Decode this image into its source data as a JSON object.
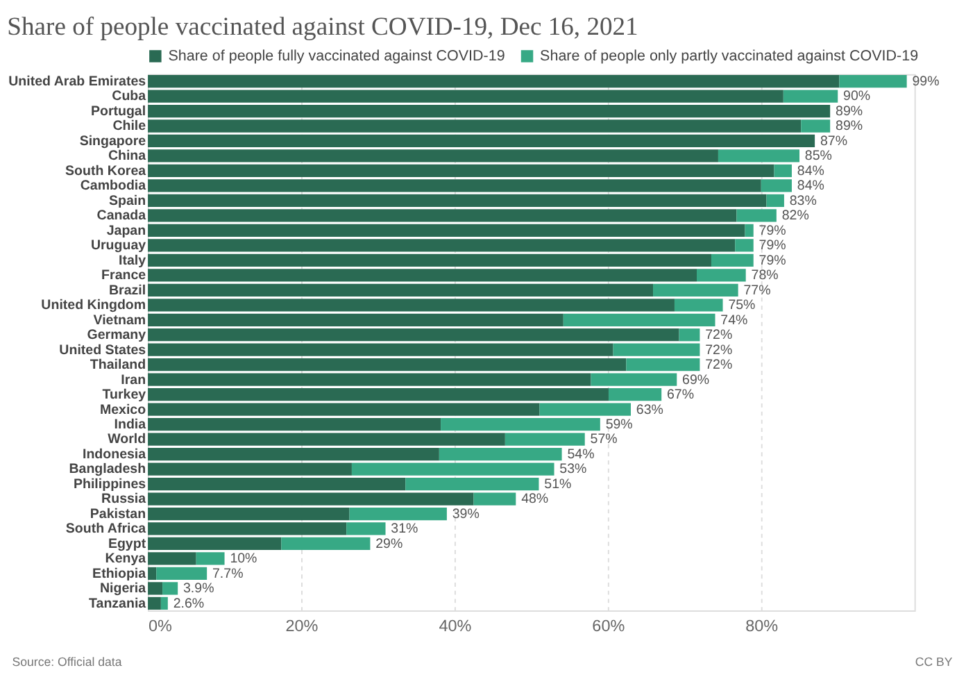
{
  "chart_data": {
    "type": "bar",
    "orientation": "horizontal",
    "stacked": true,
    "title": "Share of people vaccinated against COVID-19, Dec 16, 2021",
    "categories": [
      "United Arab Emirates",
      "Cuba",
      "Portugal",
      "Chile",
      "Singapore",
      "China",
      "South Korea",
      "Cambodia",
      "Spain",
      "Canada",
      "Japan",
      "Uruguay",
      "Italy",
      "France",
      "Brazil",
      "United Kingdom",
      "Vietnam",
      "Germany",
      "United States",
      "Thailand",
      "Iran",
      "Turkey",
      "Mexico",
      "India",
      "World",
      "Indonesia",
      "Bangladesh",
      "Philippines",
      "Russia",
      "Pakistan",
      "South Africa",
      "Egypt",
      "Kenya",
      "Ethiopia",
      "Nigeria",
      "Tanzania"
    ],
    "series": [
      {
        "name": "Share of people fully vaccinated against COVID-19",
        "color": "#2a6a53",
        "values": [
          90.2,
          82.9,
          89,
          85.2,
          87,
          74.4,
          81.7,
          80.0,
          80.7,
          76.8,
          77.9,
          76.6,
          73.5,
          71.6,
          65.9,
          68.7,
          54.2,
          69.3,
          60.7,
          62.4,
          57.8,
          60.1,
          51.1,
          38.2,
          46.6,
          38.0,
          26.6,
          33.6,
          42.5,
          26.3,
          25.9,
          17.4,
          6.3,
          1.1,
          1.9,
          1.7
        ]
      },
      {
        "name": "Share of people only partly vaccinated against COVID-19",
        "color": "#37a985",
        "values": [
          8.8,
          7.1,
          0,
          3.8,
          0,
          10.6,
          2.3,
          4.0,
          2.3,
          5.2,
          1.1,
          2.4,
          5.5,
          6.4,
          11.1,
          6.3,
          19.8,
          2.7,
          11.3,
          9.6,
          11.2,
          6.9,
          11.9,
          20.8,
          10.4,
          16.0,
          26.4,
          17.4,
          5.5,
          12.7,
          5.1,
          11.6,
          3.7,
          6.6,
          2.0,
          0.9
        ]
      }
    ],
    "totals": [
      "99%",
      "90%",
      "89%",
      "89%",
      "87%",
      "85%",
      "84%",
      "84%",
      "83%",
      "82%",
      "79%",
      "79%",
      "79%",
      "78%",
      "77%",
      "75%",
      "74%",
      "72%",
      "72%",
      "72%",
      "69%",
      "67%",
      "63%",
      "59%",
      "57%",
      "54%",
      "53%",
      "51%",
      "48%",
      "39%",
      "31%",
      "29%",
      "10%",
      "7.7%",
      "3.9%",
      "2.6%"
    ],
    "xlim": [
      0,
      100
    ],
    "xticks": [
      {
        "value": 0,
        "label": "0%"
      },
      {
        "value": 20,
        "label": "20%"
      },
      {
        "value": 40,
        "label": "40%"
      },
      {
        "value": 60,
        "label": "60%"
      },
      {
        "value": 80,
        "label": "80%"
      }
    ],
    "grid": "x",
    "legend": "top left",
    "annotations": [
      "Source: Official data",
      "CC BY"
    ]
  }
}
